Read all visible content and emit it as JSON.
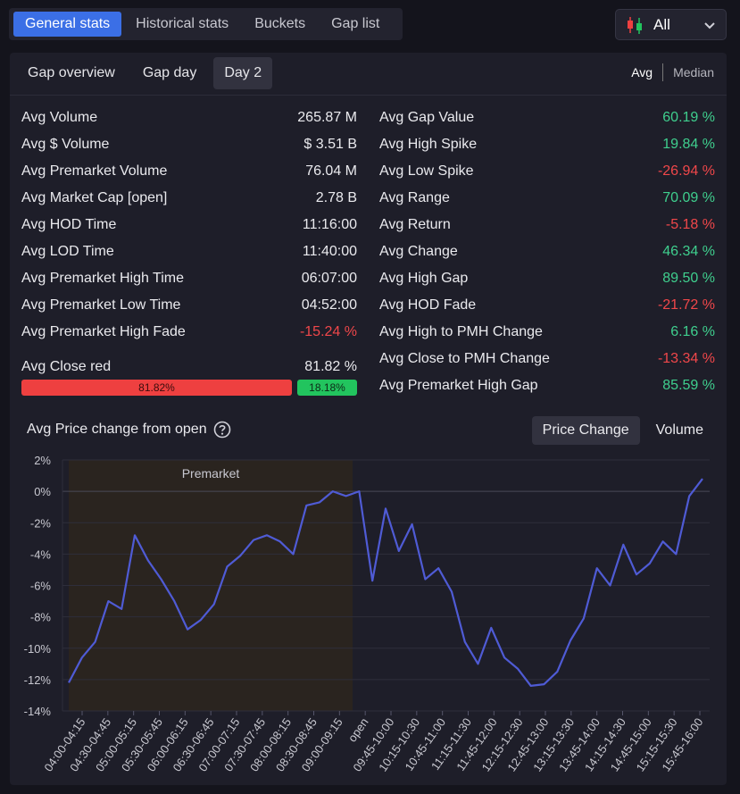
{
  "top_tabs": [
    {
      "label": "General stats",
      "active": true
    },
    {
      "label": "Historical stats",
      "active": false
    },
    {
      "label": "Buckets",
      "active": false
    },
    {
      "label": "Gap list",
      "active": false
    }
  ],
  "filter": {
    "label": "All",
    "icon": "candlestick-icon"
  },
  "sub_tabs": [
    {
      "label": "Gap overview",
      "active": false
    },
    {
      "label": "Gap day",
      "active": false
    },
    {
      "label": "Day 2",
      "active": true
    }
  ],
  "mode": {
    "avg": "Avg",
    "median": "Median"
  },
  "left_stats": [
    {
      "label": "Avg Volume",
      "value": "265.87 M"
    },
    {
      "label": "Avg $ Volume",
      "value": "$ 3.51 B"
    },
    {
      "label": "Avg Premarket Volume",
      "value": "76.04 M"
    },
    {
      "label": "Avg Market Cap [open]",
      "value": "2.78 B"
    },
    {
      "label": "Avg HOD Time",
      "value": "11:16:00"
    },
    {
      "label": "Avg LOD Time",
      "value": "11:40:00"
    },
    {
      "label": "Avg Premarket High Time",
      "value": "06:07:00"
    },
    {
      "label": "Avg Premarket Low Time",
      "value": "04:52:00"
    },
    {
      "label": "Avg Premarket High Fade",
      "value": "-15.24 %",
      "tone": "red"
    }
  ],
  "close_red": {
    "label": "Avg Close red",
    "value": "81.82 %",
    "red_pct_label": "81.82%",
    "green_pct_label": "18.18%",
    "red_fraction": 0.8182
  },
  "right_stats": [
    {
      "label": "Avg Gap Value",
      "value": "60.19 %",
      "tone": "green"
    },
    {
      "label": "Avg High Spike",
      "value": "19.84 %",
      "tone": "green"
    },
    {
      "label": "Avg Low Spike",
      "value": "-26.94 %",
      "tone": "red"
    },
    {
      "label": "Avg Range",
      "value": "70.09 %",
      "tone": "green"
    },
    {
      "label": "Avg Return",
      "value": "-5.18 %",
      "tone": "red"
    },
    {
      "label": "Avg Change",
      "value": "46.34 %",
      "tone": "green"
    },
    {
      "label": "Avg High Gap",
      "value": "89.50 %",
      "tone": "green"
    },
    {
      "label": "Avg HOD Fade",
      "value": "-21.72 %",
      "tone": "red"
    },
    {
      "label": "Avg High to PMH Change",
      "value": "6.16 %",
      "tone": "green"
    },
    {
      "label": "Avg Close to PMH Change",
      "value": "-13.34 %",
      "tone": "red"
    },
    {
      "label": "Avg Premarket High Gap",
      "value": "85.59 %",
      "tone": "green"
    }
  ],
  "chart_section": {
    "title": "Avg Price change from open",
    "tabs": [
      {
        "label": "Price Change",
        "active": true
      },
      {
        "label": "Volume",
        "active": false
      }
    ]
  },
  "colors": {
    "accent": "#3b6fe6",
    "line": "#4f5bd5",
    "premarket_band": "#2a241f",
    "green": "#3fcf8e",
    "red": "#f0474a"
  },
  "chart_data": {
    "type": "line",
    "ylim": [
      -14,
      2
    ],
    "yticks": [
      2,
      0,
      -2,
      -4,
      -6,
      -8,
      -10,
      -12,
      -14
    ],
    "ytick_labels": [
      "2%",
      "0%",
      "-2%",
      "-4%",
      "-6%",
      "-8%",
      "-10%",
      "-12%",
      "-14%"
    ],
    "xtick_labels": [
      "04:00-04:15",
      "04:30-04:45",
      "05:00-05:15",
      "05:30-05:45",
      "06:00-06:15",
      "06:30-06:45",
      "07:00-07:15",
      "07:30-07:45",
      "08:00-08:15",
      "08:30-08:45",
      "09:00-09:15",
      "open",
      "09:45-10:00",
      "10:15-10:30",
      "10:45-11:00",
      "11:15-11:30",
      "11:45-12:00",
      "12:15-12:30",
      "12:45-13:00",
      "13:15-13:30",
      "13:45-14:00",
      "14:15-14:30",
      "14:45-15:00",
      "15:15-15:30",
      "15:45-16:00"
    ],
    "premarket_label": "Premarket",
    "premarket_range": [
      0,
      22
    ],
    "open_index": 22,
    "grid": true,
    "series": [
      {
        "values": [
          -12.2,
          -10.6,
          -9.6,
          -7.0,
          -7.5,
          -2.8,
          -4.4,
          -5.6,
          -7.0,
          -8.8,
          -8.2,
          -7.2,
          -4.8,
          -4.1,
          -3.1,
          -2.8,
          -3.2,
          -4.0,
          -0.9,
          -0.7,
          0.0,
          -0.3,
          0.0,
          -5.7,
          -1.1,
          -3.8,
          -2.1,
          -5.6,
          -4.9,
          -6.4,
          -9.6,
          -11.0,
          -8.7,
          -10.6,
          -11.3,
          -12.4,
          -12.3,
          -11.5,
          -9.5,
          -8.1,
          -4.9,
          -6.0,
          -3.4,
          -5.3,
          -4.6,
          -3.2,
          -4.0,
          -0.3,
          0.8
        ]
      }
    ]
  }
}
